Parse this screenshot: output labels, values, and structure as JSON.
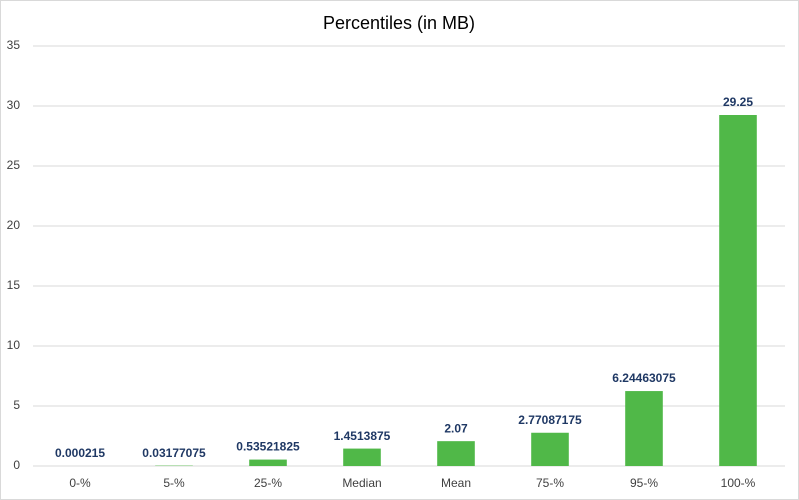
{
  "chart_data": {
    "type": "bar",
    "title": "Percentiles (in MB)",
    "categories": [
      "0-%",
      "5-%",
      "25-%",
      "Median",
      "Mean",
      "75-%",
      "95-%",
      "100-%"
    ],
    "values": [
      0.000215,
      0.03177075,
      0.53521825,
      1.4513875,
      2.07,
      2.77087175,
      6.24463075,
      29.25
    ],
    "color": "#50b848",
    "ylim": [
      0,
      35
    ],
    "yticks": [
      0,
      5,
      10,
      15,
      20,
      25,
      30,
      35
    ],
    "grid": true
  }
}
